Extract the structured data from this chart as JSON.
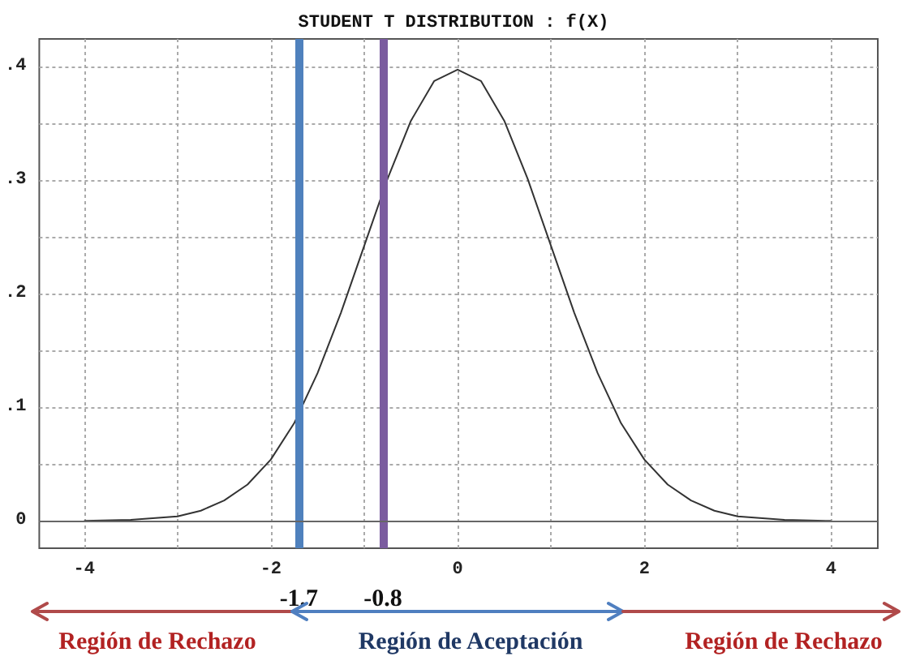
{
  "chart_data": {
    "type": "line",
    "title": "STUDENT T DISTRIBUTION : f(X)",
    "x": [
      -4,
      -3.5,
      -3,
      -2.75,
      -2.5,
      -2.25,
      -2,
      -1.75,
      -1.5,
      -1.25,
      -1,
      -0.75,
      -0.5,
      -0.25,
      0,
      0.25,
      0.5,
      0.75,
      1,
      1.25,
      1.5,
      1.75,
      2,
      2.25,
      2.5,
      2.75,
      3,
      3.5,
      4
    ],
    "series": [
      {
        "color": "#333333",
        "values": [
          0.0,
          0.001,
          0.004,
          0.009,
          0.018,
          0.032,
          0.054,
          0.086,
          0.13,
          0.183,
          0.242,
          0.301,
          0.352,
          0.387,
          0.397,
          0.387,
          0.352,
          0.301,
          0.242,
          0.183,
          0.13,
          0.086,
          0.054,
          0.032,
          0.018,
          0.009,
          0.004,
          0.001,
          0.0
        ]
      }
    ],
    "xlim": [
      -4.48,
      4.5
    ],
    "ylim": [
      -0.024,
      0.424
    ],
    "xticks": [
      -4,
      {
        "value": -3,
        "label": null
      },
      -2,
      {
        "value": -1,
        "label": null
      },
      0,
      {
        "value": 1,
        "label": null
      },
      2,
      {
        "value": 3,
        "label": null
      },
      4
    ],
    "yticks": [
      {
        "value": 0,
        "label": "0"
      },
      {
        "value": 0.05,
        "label": null
      },
      {
        "value": 0.1,
        "label": ".1"
      },
      {
        "value": 0.15,
        "label": null
      },
      {
        "value": 0.2,
        "label": ".2"
      },
      {
        "value": 0.25,
        "label": null
      },
      {
        "value": 0.3,
        "label": ".3"
      },
      {
        "value": 0.35,
        "label": null
      },
      {
        "value": 0.4,
        "label": ".4"
      }
    ],
    "grid": true,
    "ref_lines": [
      {
        "axis": "x",
        "value": -1.7,
        "label": "-1.7",
        "color": "#4f81bd"
      },
      {
        "axis": "x",
        "value": -0.8,
        "label": "-0.8",
        "color": "#7b5c9f"
      },
      {
        "axis": "y",
        "value": 0,
        "label": null,
        "color": "#666666"
      }
    ],
    "annotations": [
      "Región de Rechazo",
      "Región de Aceptación",
      "Región de Rechazo"
    ]
  }
}
